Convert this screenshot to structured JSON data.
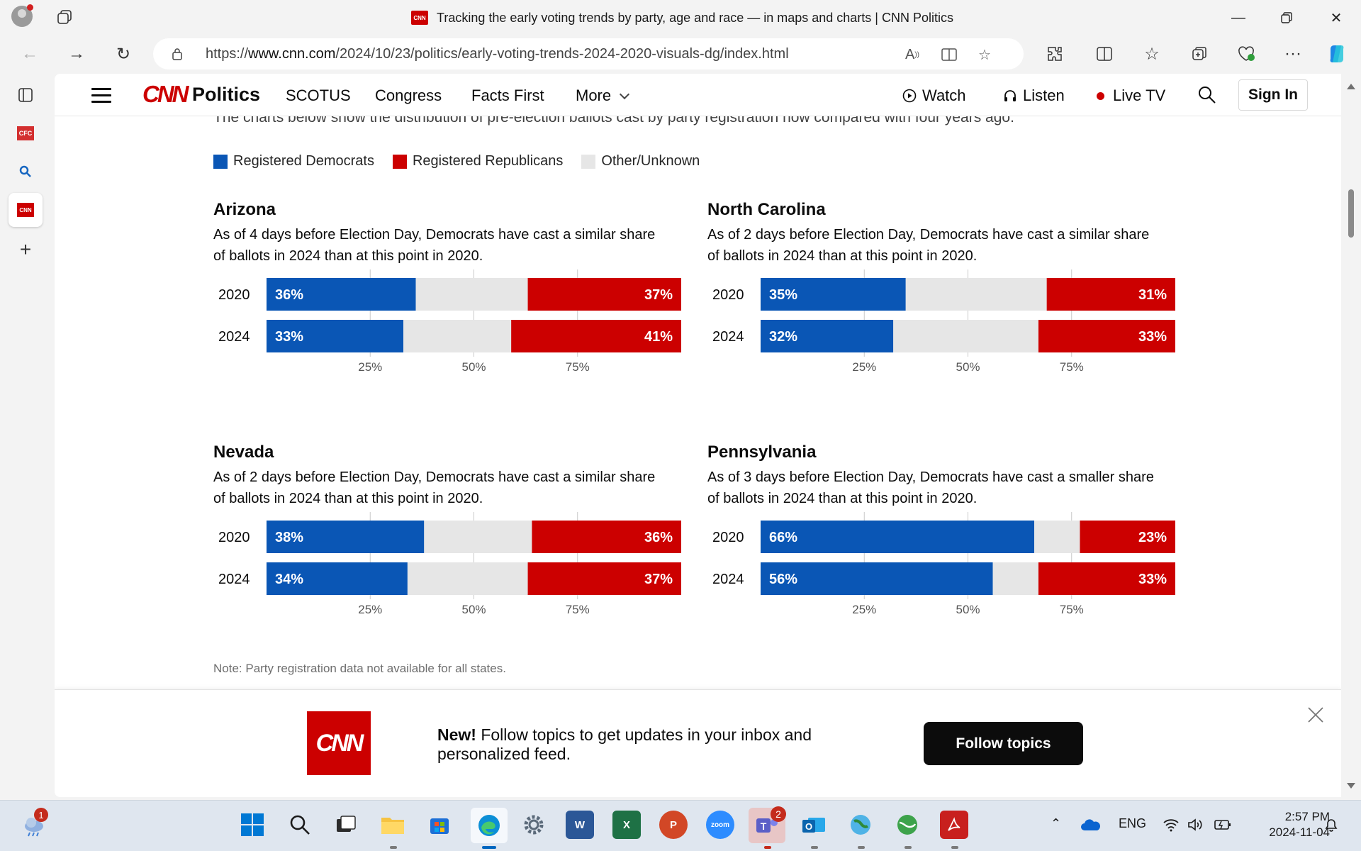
{
  "browser": {
    "tab_title": "Tracking the early voting trends by party, age and race — in maps and charts | CNN Politics",
    "favicon_text": "CNN",
    "url_prefix": "https://",
    "url_host": "www.cnn.com",
    "url_path": "/2024/10/23/politics/early-voting-trends-2024-2020-visuals-dg/index.html"
  },
  "header": {
    "logo_text": "CNN",
    "section": "Politics",
    "nav": [
      "SCOTUS",
      "Congress",
      "Facts First",
      "More"
    ],
    "watch": "Watch",
    "listen": "Listen",
    "live_tv": "Live TV",
    "sign_in": "Sign In"
  },
  "article": {
    "intro_clipped": "The charts below show the distribution of pre-election ballots cast by party registration now compared with four years ago.",
    "legend": [
      {
        "label": "Registered Democrats",
        "color": "#0a56b5"
      },
      {
        "label": "Registered Republicans",
        "color": "#cc0000"
      },
      {
        "label": "Other/Unknown",
        "color": "#e6e6e6"
      }
    ],
    "note": "Note: Party registration data not available for all states."
  },
  "chart_data": [
    {
      "type": "bar",
      "stacked": true,
      "title": "Arizona",
      "subtitle": "As of 4 days before Election Day, Democrats have cast a similar share of ballots in 2024 than at this point in 2020.",
      "categories": [
        "2020",
        "2024"
      ],
      "series": [
        {
          "name": "Registered Democrats",
          "values": [
            36,
            33
          ]
        },
        {
          "name": "Other/Unknown",
          "values": [
            27,
            26
          ]
        },
        {
          "name": "Registered Republicans",
          "values": [
            37,
            41
          ]
        }
      ],
      "xticks": [
        "25%",
        "50%",
        "75%"
      ],
      "xlim": [
        0,
        100
      ]
    },
    {
      "type": "bar",
      "stacked": true,
      "title": "North Carolina",
      "subtitle": "As of 2 days before Election Day, Democrats have cast a similar share of ballots in 2024 than at this point in 2020.",
      "categories": [
        "2020",
        "2024"
      ],
      "series": [
        {
          "name": "Registered Democrats",
          "values": [
            35,
            32
          ]
        },
        {
          "name": "Other/Unknown",
          "values": [
            34,
            35
          ]
        },
        {
          "name": "Registered Republicans",
          "values": [
            31,
            33
          ]
        }
      ],
      "xticks": [
        "25%",
        "50%",
        "75%"
      ],
      "xlim": [
        0,
        100
      ]
    },
    {
      "type": "bar",
      "stacked": true,
      "title": "Nevada",
      "subtitle": "As of 2 days before Election Day, Democrats have cast a similar share of ballots in 2024 than at this point in 2020.",
      "categories": [
        "2020",
        "2024"
      ],
      "series": [
        {
          "name": "Registered Democrats",
          "values": [
            38,
            34
          ]
        },
        {
          "name": "Other/Unknown",
          "values": [
            26,
            29
          ]
        },
        {
          "name": "Registered Republicans",
          "values": [
            36,
            37
          ]
        }
      ],
      "xticks": [
        "25%",
        "50%",
        "75%"
      ],
      "xlim": [
        0,
        100
      ]
    },
    {
      "type": "bar",
      "stacked": true,
      "title": "Pennsylvania",
      "subtitle": "As of 3 days before Election Day, Democrats have cast a smaller share of ballots in 2024 than at this point in 2020.",
      "categories": [
        "2020",
        "2024"
      ],
      "series": [
        {
          "name": "Registered Democrats",
          "values": [
            66,
            56
          ]
        },
        {
          "name": "Other/Unknown",
          "values": [
            11,
            11
          ]
        },
        {
          "name": "Registered Republicans",
          "values": [
            23,
            33
          ]
        }
      ],
      "xticks": [
        "25%",
        "50%",
        "75%"
      ],
      "xlim": [
        0,
        100
      ]
    }
  ],
  "promo": {
    "logo_text": "CNN",
    "bold": "New!",
    "text": "Follow topics to get updates in your inbox and personalized feed.",
    "button": "Follow topics"
  },
  "taskbar": {
    "apps": [
      "Start",
      "Search",
      "Task View",
      "File Explorer",
      "Microsoft Store",
      "Microsoft Edge",
      "Settings",
      "Word",
      "Excel",
      "PowerPoint",
      "Zoom",
      "Teams",
      "Outlook",
      "App",
      "App",
      "Adobe Acrobat"
    ],
    "weather_badge": "1",
    "teams_badge": "2",
    "language": "ENG",
    "time": "2:57 PM",
    "date": "2024-11-04"
  }
}
